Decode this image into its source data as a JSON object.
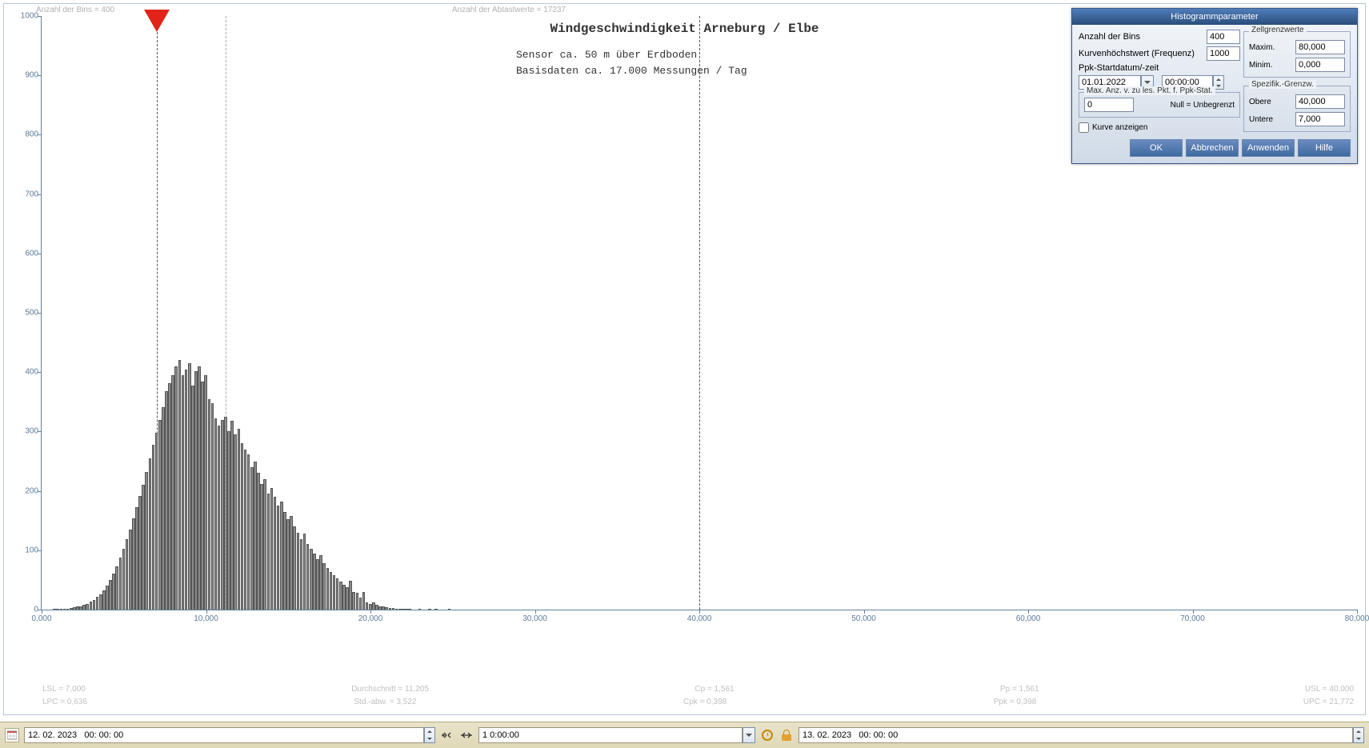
{
  "top_info": {
    "bins_label": "Anzahl der Bins =   400",
    "samples_label": "Anzahl der Abtastwerte = 17237"
  },
  "chart": {
    "type": "histogram",
    "title": "Windgeschwindigkeit  Arneburg / Elbe",
    "subtitle1": "Sensor ca. 50 m über Erdboden",
    "subtitle2": "Basisdaten ca. 17.000 Messungen / Tag",
    "xlim": [
      0,
      80
    ],
    "ylim": [
      0,
      1000
    ],
    "xtick_labels": [
      "0,000",
      "10,000",
      "20,000",
      "30,000",
      "40,000",
      "50,000",
      "60,000",
      "70,000",
      "80,000"
    ],
    "ytick_values": [
      0,
      100,
      200,
      300,
      400,
      500,
      600,
      700,
      800,
      900,
      1000
    ],
    "xtick_positions": [
      0,
      10,
      20,
      30,
      40,
      50,
      60,
      70,
      80
    ],
    "marker_x": 7.0,
    "lsl_dashed_x": 7.0,
    "mean_dashed_x": 11.205,
    "usl_dash_x": 40.0,
    "bar_color": "#8a8a8a",
    "bar_border": "#555555",
    "bin_width": 0.2,
    "bars": [
      [
        0.8,
        1
      ],
      [
        1.0,
        1
      ],
      [
        1.2,
        1
      ],
      [
        1.4,
        2
      ],
      [
        1.6,
        2
      ],
      [
        1.8,
        3
      ],
      [
        2.0,
        4
      ],
      [
        2.2,
        5
      ],
      [
        2.4,
        6
      ],
      [
        2.6,
        8
      ],
      [
        2.8,
        10
      ],
      [
        3.0,
        13
      ],
      [
        3.2,
        16
      ],
      [
        3.4,
        21
      ],
      [
        3.6,
        26
      ],
      [
        3.8,
        33
      ],
      [
        4.0,
        41
      ],
      [
        4.2,
        50
      ],
      [
        4.4,
        60
      ],
      [
        4.6,
        73
      ],
      [
        4.8,
        87
      ],
      [
        5.0,
        102
      ],
      [
        5.2,
        118
      ],
      [
        5.4,
        135
      ],
      [
        5.6,
        154
      ],
      [
        5.8,
        173
      ],
      [
        6.0,
        192
      ],
      [
        6.2,
        210
      ],
      [
        6.4,
        232
      ],
      [
        6.6,
        255
      ],
      [
        6.8,
        278
      ],
      [
        7.0,
        298
      ],
      [
        7.2,
        320
      ],
      [
        7.4,
        341
      ],
      [
        7.6,
        368
      ],
      [
        7.8,
        382
      ],
      [
        8.0,
        395
      ],
      [
        8.2,
        410
      ],
      [
        8.4,
        420
      ],
      [
        8.6,
        395
      ],
      [
        8.8,
        405
      ],
      [
        9.0,
        415
      ],
      [
        9.2,
        378
      ],
      [
        9.4,
        402
      ],
      [
        9.6,
        410
      ],
      [
        9.8,
        384
      ],
      [
        10.0,
        395
      ],
      [
        10.2,
        355
      ],
      [
        10.4,
        348
      ],
      [
        10.6,
        322
      ],
      [
        10.8,
        310
      ],
      [
        11.0,
        320
      ],
      [
        11.2,
        325
      ],
      [
        11.4,
        300
      ],
      [
        11.6,
        318
      ],
      [
        11.8,
        295
      ],
      [
        12.0,
        305
      ],
      [
        12.2,
        280
      ],
      [
        12.4,
        270
      ],
      [
        12.6,
        262
      ],
      [
        12.8,
        240
      ],
      [
        13.0,
        250
      ],
      [
        13.2,
        230
      ],
      [
        13.4,
        212
      ],
      [
        13.6,
        220
      ],
      [
        13.8,
        195
      ],
      [
        14.0,
        205
      ],
      [
        14.2,
        190
      ],
      [
        14.4,
        175
      ],
      [
        14.6,
        182
      ],
      [
        14.8,
        165
      ],
      [
        15.0,
        152
      ],
      [
        15.2,
        158
      ],
      [
        15.4,
        140
      ],
      [
        15.6,
        130
      ],
      [
        15.8,
        118
      ],
      [
        16.0,
        128
      ],
      [
        16.2,
        110
      ],
      [
        16.4,
        102
      ],
      [
        16.6,
        95
      ],
      [
        16.8,
        85
      ],
      [
        17.0,
        92
      ],
      [
        17.2,
        78
      ],
      [
        17.4,
        70
      ],
      [
        17.6,
        64
      ],
      [
        17.8,
        58
      ],
      [
        18.0,
        52
      ],
      [
        18.2,
        47
      ],
      [
        18.4,
        42
      ],
      [
        18.6,
        38
      ],
      [
        18.8,
        48
      ],
      [
        19.0,
        30
      ],
      [
        19.2,
        28
      ],
      [
        19.4,
        20
      ],
      [
        19.6,
        29
      ],
      [
        19.8,
        12
      ],
      [
        20.0,
        10
      ],
      [
        20.2,
        12
      ],
      [
        20.4,
        8
      ],
      [
        20.6,
        6
      ],
      [
        20.8,
        5
      ],
      [
        21.0,
        4
      ],
      [
        21.2,
        3
      ],
      [
        21.4,
        3
      ],
      [
        21.6,
        2
      ],
      [
        21.8,
        2
      ],
      [
        22.0,
        1
      ],
      [
        22.2,
        1
      ],
      [
        22.4,
        1
      ],
      [
        23.0,
        1
      ],
      [
        23.6,
        1
      ],
      [
        24.0,
        1
      ],
      [
        24.8,
        1
      ]
    ]
  },
  "stats": {
    "row1": {
      "lsl": "LSL = 7,000",
      "mean": "Durchschnitt = 11,205",
      "cp": "Cp  = 1,561",
      "pp": "Pp  = 1,561",
      "usl": "USL = 40,000"
    },
    "row2": {
      "lpc": "LPC = 0,636",
      "std": "Std.-abw. = 3,522",
      "cpk": "Cpk = 0,398",
      "ppk": "Ppk = 0,398",
      "upc": "UPC = 21,772"
    }
  },
  "dialog": {
    "title": "Histogrammparameter",
    "bins_label": "Anzahl der Bins",
    "bins_value": "400",
    "peak_label": "Kurvenhöchstwert (Frequenz)",
    "peak_value": "1000",
    "startdate_label": "Ppk-Startdatum/-zeit",
    "date_value": "01.01.2022",
    "time_value": "00:00:00",
    "maxpts_legend": "Max. Anz. v. zu les. Pkt. f. Ppk-Stat.",
    "maxpts_value": "0",
    "maxpts_hint": "Null = Unbegrenzt",
    "show_curve_label": "Kurve anzeigen",
    "show_curve_checked": false,
    "cell_legend": "Zellgrenzwerte",
    "cell_max_label": "Maxim.",
    "cell_max_value": "80,000",
    "cell_min_label": "Minim.",
    "cell_min_value": "0,000",
    "spec_legend": "Spezifik.-Grenzw.",
    "spec_upper_label": "Obere",
    "spec_upper_value": "40,000",
    "spec_lower_label": "Untere",
    "spec_lower_value": "7,000",
    "btn_ok": "OK",
    "btn_cancel": "Abbrechen",
    "btn_apply": "Anwenden",
    "btn_help": "Hilfe"
  },
  "bottombar": {
    "start_datetime": "12. 02. 2023   00: 00: 00",
    "span": "1 0:00:00",
    "end_datetime": "13. 02. 2023   00: 00: 00"
  }
}
